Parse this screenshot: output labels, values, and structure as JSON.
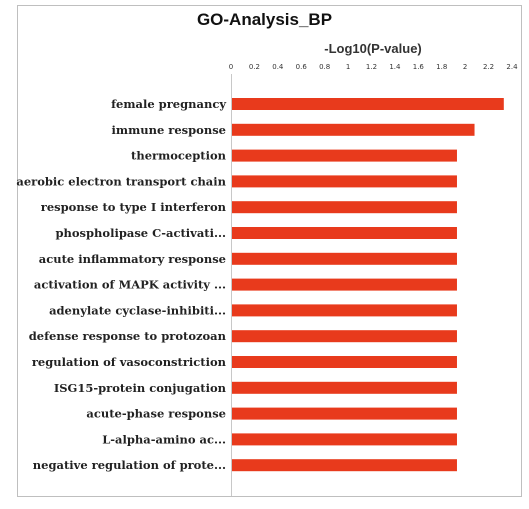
{
  "chart_data": {
    "type": "bar",
    "orientation": "horizontal",
    "title": "GO-Analysis_BP",
    "xlabel": "-Log10(P-value)",
    "xlim": [
      0,
      2.4
    ],
    "xticks": [
      0,
      0.2,
      0.4,
      0.6,
      0.8,
      1,
      1.2,
      1.4,
      1.6,
      1.8,
      2,
      2.2,
      2.4
    ],
    "xtick_labels": [
      "0",
      "0.2",
      "0.4",
      "0.6",
      "0.8",
      "1",
      "1.2",
      "1.4",
      "1.6",
      "1.8",
      "2",
      "2.2",
      "2.4"
    ],
    "categories": [
      "female pregnancy",
      "immune response",
      "thermoception",
      "aerobic electron transport chain",
      "response to type I interferon",
      "phospholipase C-activati...",
      "acute inflammatory response",
      "activation of MAPK activity ...",
      "adenylate cyclase-inhibiti...",
      "defense response to protozoan",
      "regulation of vasoconstriction",
      "ISG15-protein conjugation",
      "acute-phase response",
      "L-alpha-amino ac...",
      "negative regulation of prote..."
    ],
    "values": [
      2.33,
      2.08,
      1.93,
      1.93,
      1.93,
      1.93,
      1.93,
      1.93,
      1.93,
      1.93,
      1.93,
      1.93,
      1.93,
      1.93,
      1.93
    ],
    "bar_color": "#e83a1c",
    "grid": false
  }
}
